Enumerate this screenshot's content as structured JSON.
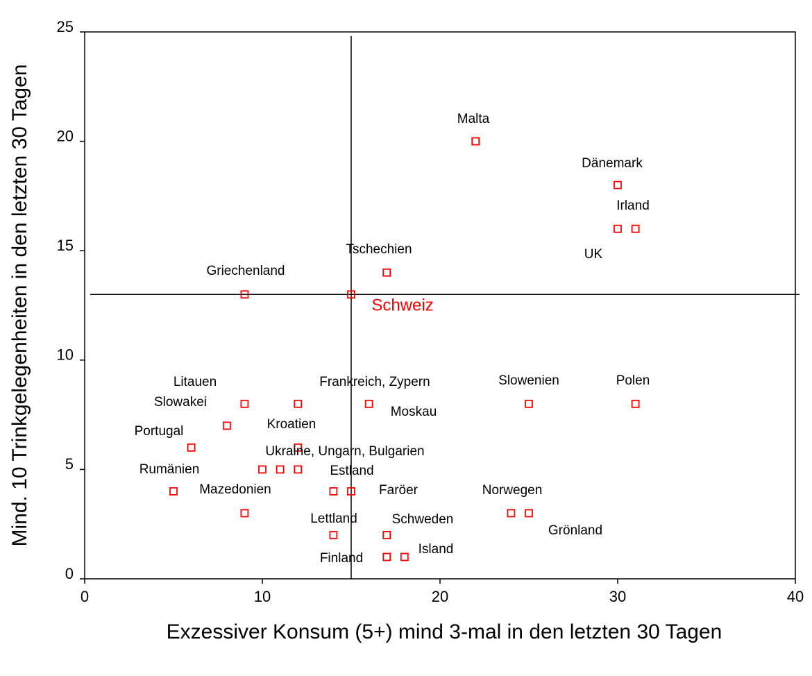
{
  "chart_data": {
    "type": "scatter",
    "xlabel": "Exzessiver Konsum (5+) mind 3-mal in den letzten 30 Tagen",
    "ylabel": "Mind. 10 Trinkgelegenheiten in den letzten 30 Tagen",
    "series": [
      {
        "color": "#ff0000",
        "x": [
          22,
          30,
          30,
          31,
          17,
          9,
          15,
          9,
          8,
          12,
          16,
          25,
          31,
          6,
          12,
          10,
          11,
          12,
          5,
          14,
          15,
          9,
          24,
          25,
          14,
          17,
          17,
          18
        ],
        "values": [
          20,
          18,
          16,
          16,
          14,
          13,
          13,
          8,
          7,
          8,
          8,
          8,
          8,
          6,
          6,
          5,
          5,
          5,
          4,
          4,
          4,
          3,
          3,
          3,
          2,
          2,
          1,
          1
        ]
      }
    ],
    "reference_x": 15,
    "reference_y": 13,
    "annotations": [
      "Malta",
      "Dänemark",
      "Irland",
      "UK",
      "Tschechien",
      "Griechenland",
      "Schweiz",
      "Litauen",
      "Slowakei",
      "Frankreich, Zypern",
      "Moskau",
      "Slowenien",
      "Polen",
      "Kroatien",
      "Portugal",
      "Ukraine, Ungarn, Bulgarien",
      "Rumänien",
      "Estland",
      "Mazedonien",
      "Faröer",
      "Norwegen",
      "Lettland",
      "Schweden",
      "Grönland",
      "Island",
      "Finland"
    ],
    "annotation_colors": [
      "#000000",
      "#000000",
      "#000000",
      "#000000",
      "#000000",
      "#000000",
      "#ff0000",
      "#000000",
      "#000000",
      "#000000",
      "#000000",
      "#000000",
      "#000000",
      "#000000",
      "#000000",
      "#000000",
      "#000000",
      "#000000",
      "#000000",
      "#000000",
      "#000000",
      "#000000",
      "#000000",
      "#000000",
      "#000000",
      "#000000"
    ],
    "xlim": [
      0,
      40
    ],
    "xticks": [
      0,
      10,
      20,
      30,
      40
    ],
    "ylim": [
      0,
      25
    ],
    "yticks": [
      0,
      5,
      10,
      15,
      20,
      25
    ],
    "grid": false
  }
}
